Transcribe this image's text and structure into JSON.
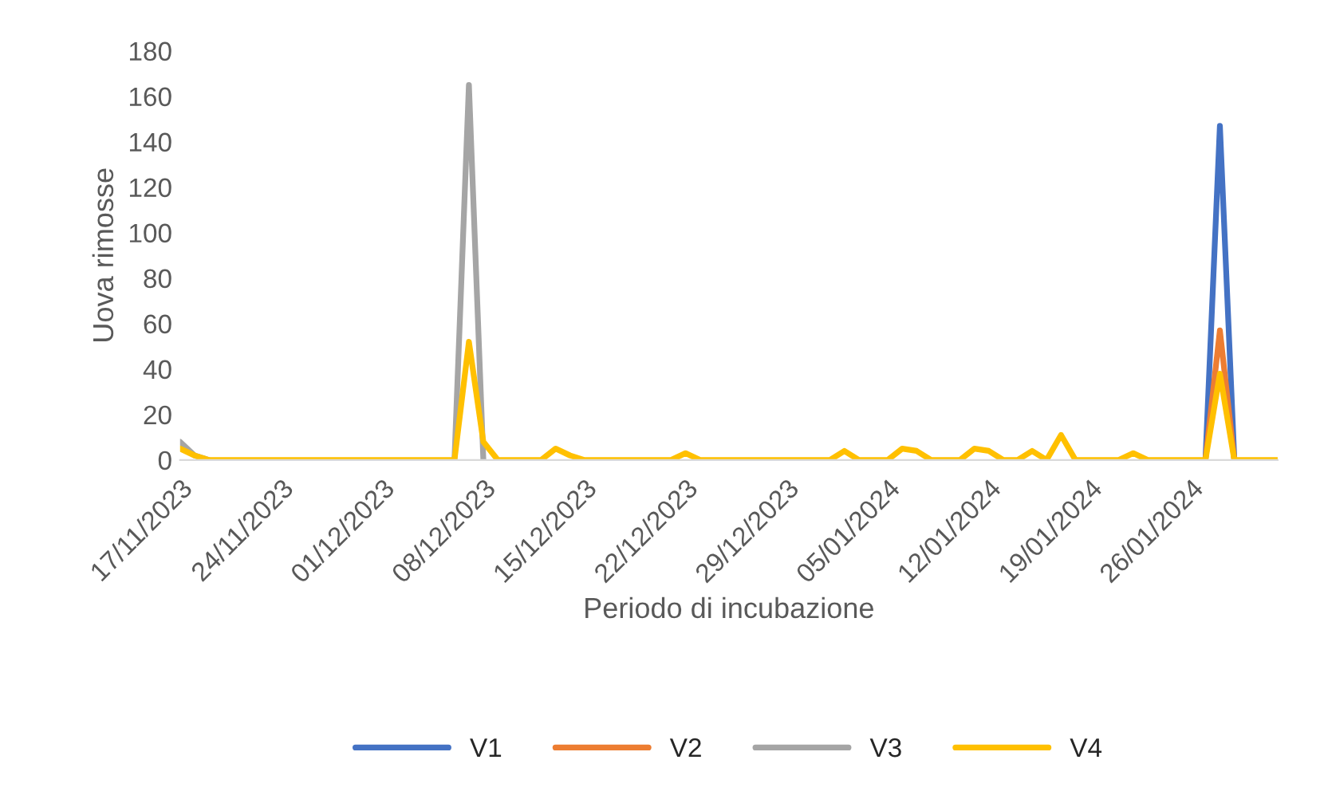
{
  "chart_data": {
    "type": "line",
    "xlabel": "Periodo di incubazione",
    "ylabel": "Uova rimosse",
    "x": [
      "2023-11-17",
      "2023-11-18",
      "2023-11-19",
      "2023-11-20",
      "2023-11-21",
      "2023-11-22",
      "2023-11-23",
      "2023-11-24",
      "2023-11-25",
      "2023-11-26",
      "2023-11-27",
      "2023-11-28",
      "2023-11-29",
      "2023-11-30",
      "2023-12-01",
      "2023-12-02",
      "2023-12-03",
      "2023-12-04",
      "2023-12-05",
      "2023-12-06",
      "2023-12-07",
      "2023-12-08",
      "2023-12-09",
      "2023-12-10",
      "2023-12-11",
      "2023-12-12",
      "2023-12-13",
      "2023-12-14",
      "2023-12-15",
      "2023-12-16",
      "2023-12-17",
      "2023-12-18",
      "2023-12-19",
      "2023-12-20",
      "2023-12-21",
      "2023-12-22",
      "2023-12-23",
      "2023-12-24",
      "2023-12-25",
      "2023-12-26",
      "2023-12-27",
      "2023-12-28",
      "2023-12-29",
      "2023-12-30",
      "2023-12-31",
      "2024-01-01",
      "2024-01-02",
      "2024-01-03",
      "2024-01-04",
      "2024-01-05",
      "2024-01-06",
      "2024-01-07",
      "2024-01-08",
      "2024-01-09",
      "2024-01-10",
      "2024-01-11",
      "2024-01-12",
      "2024-01-13",
      "2024-01-14",
      "2024-01-15",
      "2024-01-16",
      "2024-01-17",
      "2024-01-18",
      "2024-01-19",
      "2024-01-20",
      "2024-01-21",
      "2024-01-22",
      "2024-01-23",
      "2024-01-24",
      "2024-01-25",
      "2024-01-26",
      "2024-01-27",
      "2024-01-28",
      "2024-01-29",
      "2024-01-30",
      "2024-01-31",
      "2024-02-01"
    ],
    "series": [
      {
        "name": "V1",
        "color": "#4472c4",
        "values": [
          null,
          null,
          null,
          null,
          null,
          null,
          null,
          null,
          null,
          null,
          null,
          null,
          null,
          null,
          null,
          null,
          null,
          null,
          null,
          null,
          null,
          null,
          null,
          null,
          null,
          null,
          null,
          null,
          null,
          null,
          null,
          null,
          null,
          null,
          null,
          null,
          null,
          null,
          null,
          null,
          null,
          null,
          null,
          null,
          null,
          null,
          null,
          null,
          null,
          null,
          null,
          null,
          null,
          null,
          null,
          null,
          null,
          null,
          null,
          null,
          null,
          null,
          null,
          null,
          null,
          null,
          null,
          null,
          null,
          null,
          null,
          0,
          147,
          0,
          null,
          null,
          null
        ]
      },
      {
        "name": "V2",
        "color": "#ed7d31",
        "values": [
          null,
          null,
          null,
          null,
          null,
          null,
          null,
          null,
          null,
          null,
          null,
          null,
          null,
          null,
          null,
          null,
          null,
          null,
          null,
          null,
          null,
          null,
          null,
          null,
          null,
          null,
          null,
          null,
          null,
          null,
          null,
          null,
          null,
          null,
          null,
          null,
          null,
          null,
          null,
          null,
          null,
          null,
          null,
          null,
          null,
          null,
          null,
          null,
          null,
          null,
          null,
          null,
          null,
          null,
          null,
          null,
          null,
          null,
          null,
          null,
          null,
          null,
          null,
          null,
          null,
          null,
          null,
          null,
          null,
          null,
          null,
          0,
          57,
          0,
          null,
          null,
          null
        ]
      },
      {
        "name": "V3",
        "color": "#a5a5a5",
        "values": [
          8,
          2,
          0,
          null,
          null,
          null,
          null,
          null,
          null,
          null,
          null,
          null,
          null,
          null,
          null,
          null,
          null,
          null,
          null,
          0,
          165,
          0,
          null,
          null,
          null,
          null,
          null,
          null,
          null,
          null,
          null,
          null,
          null,
          null,
          null,
          null,
          null,
          null,
          null,
          null,
          null,
          null,
          null,
          null,
          null,
          null,
          null,
          null,
          null,
          null,
          null,
          null,
          null,
          null,
          null,
          null,
          null,
          null,
          null,
          null,
          null,
          null,
          null,
          null,
          null,
          null,
          null,
          null,
          null,
          null,
          null,
          null,
          null,
          null,
          null,
          null,
          null
        ]
      },
      {
        "name": "V4",
        "color": "#ffc000",
        "values": [
          5,
          2,
          0,
          0,
          0,
          0,
          0,
          0,
          0,
          0,
          0,
          0,
          0,
          0,
          0,
          0,
          0,
          0,
          0,
          0,
          52,
          8,
          0,
          0,
          0,
          0,
          5,
          2,
          0,
          0,
          0,
          0,
          0,
          0,
          0,
          3,
          0,
          0,
          0,
          0,
          0,
          0,
          0,
          0,
          0,
          0,
          4,
          0,
          0,
          0,
          5,
          4,
          0,
          0,
          0,
          5,
          4,
          0,
          0,
          4,
          0,
          11,
          0,
          0,
          0,
          0,
          3,
          0,
          0,
          0,
          0,
          0,
          38,
          0,
          0,
          0,
          0
        ]
      }
    ],
    "xlim": [
      "2023-11-17",
      "2024-02-01"
    ],
    "xticks": [
      {
        "value": "2023-11-17",
        "label": "17/11/2023"
      },
      {
        "value": "2023-11-24",
        "label": "24/11/2023"
      },
      {
        "value": "2023-12-01",
        "label": "01/12/2023"
      },
      {
        "value": "2023-12-08",
        "label": "08/12/2023"
      },
      {
        "value": "2023-12-15",
        "label": "15/12/2023"
      },
      {
        "value": "2023-12-22",
        "label": "22/12/2023"
      },
      {
        "value": "2023-12-29",
        "label": "29/12/2023"
      },
      {
        "value": "2024-01-05",
        "label": "05/01/2024"
      },
      {
        "value": "2024-01-12",
        "label": "12/01/2024"
      },
      {
        "value": "2024-01-19",
        "label": "19/01/2024"
      },
      {
        "value": "2024-01-26",
        "label": "26/01/2024"
      }
    ],
    "ylim": [
      0,
      180
    ],
    "yticks": [
      0,
      20,
      40,
      60,
      80,
      100,
      120,
      140,
      160,
      180
    ],
    "grid": false,
    "legend": "bottom"
  }
}
